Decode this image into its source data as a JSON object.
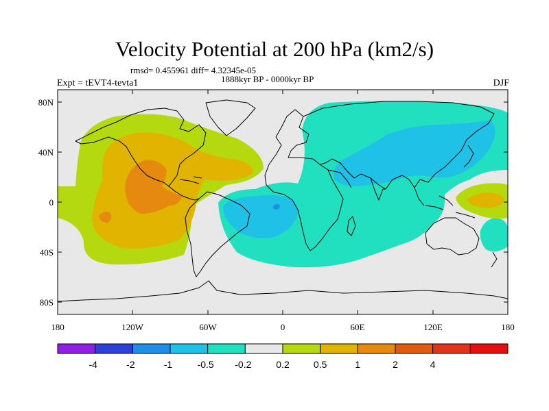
{
  "title": "Velocity Potential at 200 hPa (km2/s)",
  "stats": "rmsd= 0.455961 diff= 4.32345e-05",
  "period": "1888kyr BP - 0000kyr BP",
  "experiment": "Expt = tEVT4-tevta1",
  "season": "DJF",
  "map": {
    "x_ticks": [
      "180",
      "120W",
      "60W",
      "0",
      "60E",
      "120E",
      "180"
    ],
    "y_ticks": [
      "80N",
      "40N",
      "0",
      "40S",
      "80S"
    ]
  },
  "colorbar": {
    "colors": [
      "#8f1fe6",
      "#2d3fd9",
      "#1e8ee6",
      "#1fc2e6",
      "#21e0c0",
      "#e8e8e8",
      "#b5d90f",
      "#e0b400",
      "#e68a0f",
      "#e05a10",
      "#e0351a",
      "#e60f0f"
    ],
    "labels": [
      "-4",
      "-2",
      "-1",
      "-0.5",
      "-0.2",
      "0.2",
      "0.5",
      "1",
      "2",
      "4"
    ]
  },
  "fill_colors": {
    "land_background": "#e8e8e8",
    "light_green": "#b5d90f",
    "light_orange": "#e0b400",
    "orange": "#e68a0f",
    "dark_orange": "#e05a10",
    "teal": "#21e0c0",
    "light_blue": "#1fc2e6",
    "blue": "#1e8ee6"
  }
}
